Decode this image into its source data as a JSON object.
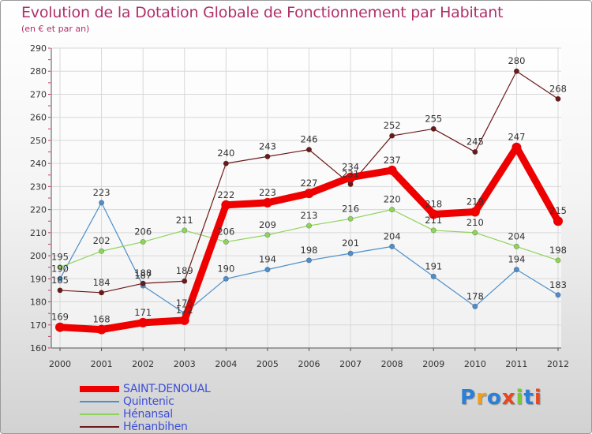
{
  "chart_data": {
    "type": "line",
    "title": "Evolution de la Dotation Globale de Fonctionnement par Habitant",
    "subtitle": "(en € et par an)",
    "xlabel": "",
    "ylabel": "",
    "ylim": [
      160,
      290
    ],
    "yticks": [
      160,
      170,
      180,
      190,
      200,
      210,
      220,
      230,
      240,
      250,
      260,
      270,
      280,
      290
    ],
    "grid": true,
    "legend_position": "bottom-left",
    "categories": [
      "2000",
      "2001",
      "2002",
      "2003",
      "2004",
      "2005",
      "2006",
      "2007",
      "2008",
      "2009",
      "2010",
      "2011",
      "2012"
    ],
    "series": [
      {
        "name": "SAINT-DENOUAL",
        "color": "#ee0000",
        "values": [
          169,
          168,
          171,
          172,
          222,
          223,
          227,
          234,
          237,
          218,
          219,
          247,
          215
        ]
      },
      {
        "name": "Quintenic",
        "color": "#4e8fc9",
        "values": [
          190,
          223,
          187,
          175,
          190,
          194,
          198,
          201,
          204,
          191,
          178,
          194,
          183
        ]
      },
      {
        "name": "Hénansal",
        "color": "#8fd45a",
        "values": [
          195,
          202,
          206,
          211,
          206,
          209,
          213,
          216,
          220,
          211,
          210,
          204,
          198
        ]
      },
      {
        "name": "Hénanbihen",
        "color": "#6b1a1a",
        "values": [
          185,
          184,
          188,
          189,
          240,
          243,
          246,
          231,
          252,
          255,
          245,
          280,
          268
        ]
      }
    ]
  },
  "logo": {
    "text": "Proxiti",
    "colors": [
      "#2b7fd6",
      "#f0a018",
      "#2b7fd6",
      "#e84820",
      "#78c83c",
      "#2b7fd6",
      "#e84820"
    ]
  }
}
